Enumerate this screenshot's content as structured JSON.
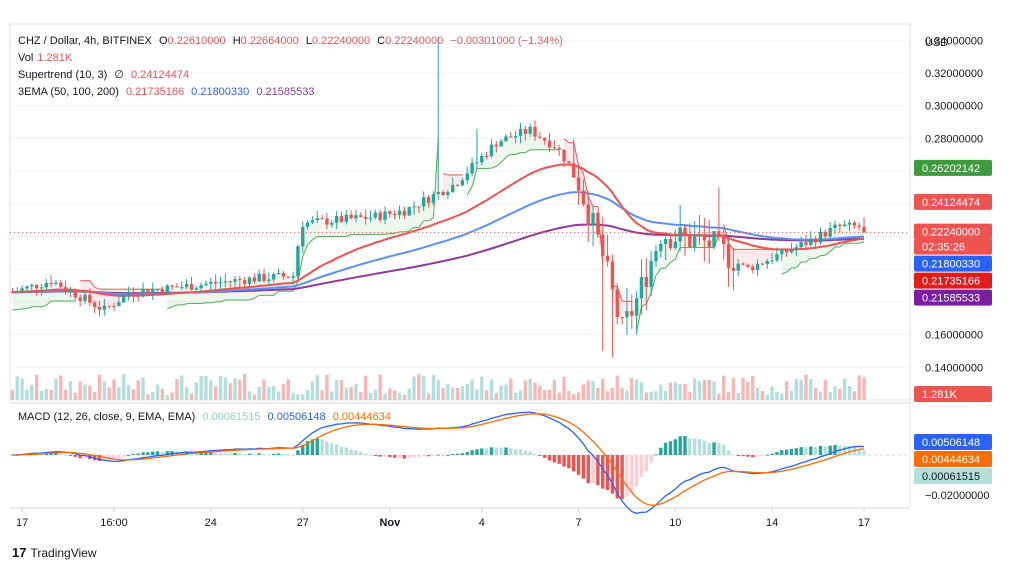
{
  "header": {
    "symbol": "CHZ / Dollar, 4h, BITFINEX",
    "open_label": "O",
    "open": "0.22610000",
    "high_label": "H",
    "high": "0.22664000",
    "low_label": "L",
    "low": "0.22240000",
    "close_label": "C",
    "close": "0.22240000",
    "change": "−0.00301000 (−1.34%)",
    "vol_label": "Vol",
    "vol": "1.281K",
    "supertrend_label": "Supertrend (10, 3)",
    "supertrend_symbol": "∅",
    "supertrend_value": "0.24124474",
    "ema_label": "3EMA (50, 100, 200)",
    "ema50": "0.21735166",
    "ema100": "0.21800330",
    "ema200": "0.21585533",
    "macd_label": "MACD (12, 26, close, 9, EMA, EMA)",
    "macd_hist": "0.00061515",
    "macd_line": "0.00506148",
    "macd_signal": "0.00444634"
  },
  "brand": {
    "name": "TradingView"
  },
  "colors": {
    "up": "#26a69a",
    "down": "#ef5350",
    "ema50": "#ef5350",
    "ema100": "#5b8ff9",
    "ema200": "#8e3c98",
    "st_up": "#4caf50",
    "st_down": "#ef5350",
    "macd": "#2962ff",
    "signal": "#ff6d00",
    "accent_green": "#3d9a3d"
  },
  "chart_data": [
    {
      "type": "candlestick",
      "title": "CHZ / Dollar, 4h, BITFINEX",
      "y_unit": "USD",
      "ylim": [
        0.12,
        0.35
      ],
      "y_ticks": [
        "0.34000000",
        "0.32000000",
        "0.30000000",
        "0.28000000",
        "0.16000000",
        "0.14000000"
      ],
      "x_tick_labels": [
        "17",
        "16:00",
        "24",
        "27",
        "Nov",
        "4",
        "7",
        "10",
        "14",
        "17"
      ],
      "price_labels": [
        {
          "name": "Supertrend (up)",
          "value": "0.26202142",
          "color": "#3d9a3d"
        },
        {
          "name": "Supertrend",
          "value": "0.24124474",
          "color": "#ef5350"
        },
        {
          "name": "Last price",
          "value": "0.22240000",
          "color": "#ef5350"
        },
        {
          "name": "Countdown",
          "value": "02:35:26",
          "color": "#ef5350"
        },
        {
          "name": "EMA 100",
          "value": "0.21800330",
          "color": "#2962ff"
        },
        {
          "name": "EMA 50",
          "value": "0.21735166",
          "color": "#e31b1b"
        },
        {
          "name": "EMA 200",
          "value": "0.21585533",
          "color": "#7b1fa2"
        }
      ],
      "volume_label": {
        "value": "1.281K",
        "color": "#ef5350"
      },
      "last_price": 0.2224
    },
    {
      "type": "macd",
      "title": "MACD (12, 26, close, 9, EMA, EMA)",
      "ylim": [
        -0.025,
        0.025
      ],
      "y_ticks": [
        "−0.02000000"
      ],
      "price_labels": [
        {
          "name": "MACD",
          "value": "0.00506148",
          "color": "#2962ff"
        },
        {
          "name": "Signal",
          "value": "0.00444634",
          "color": "#ff6d00"
        },
        {
          "name": "Histogram",
          "value": "0.00061515",
          "color": "#b2dfdb"
        }
      ]
    }
  ]
}
